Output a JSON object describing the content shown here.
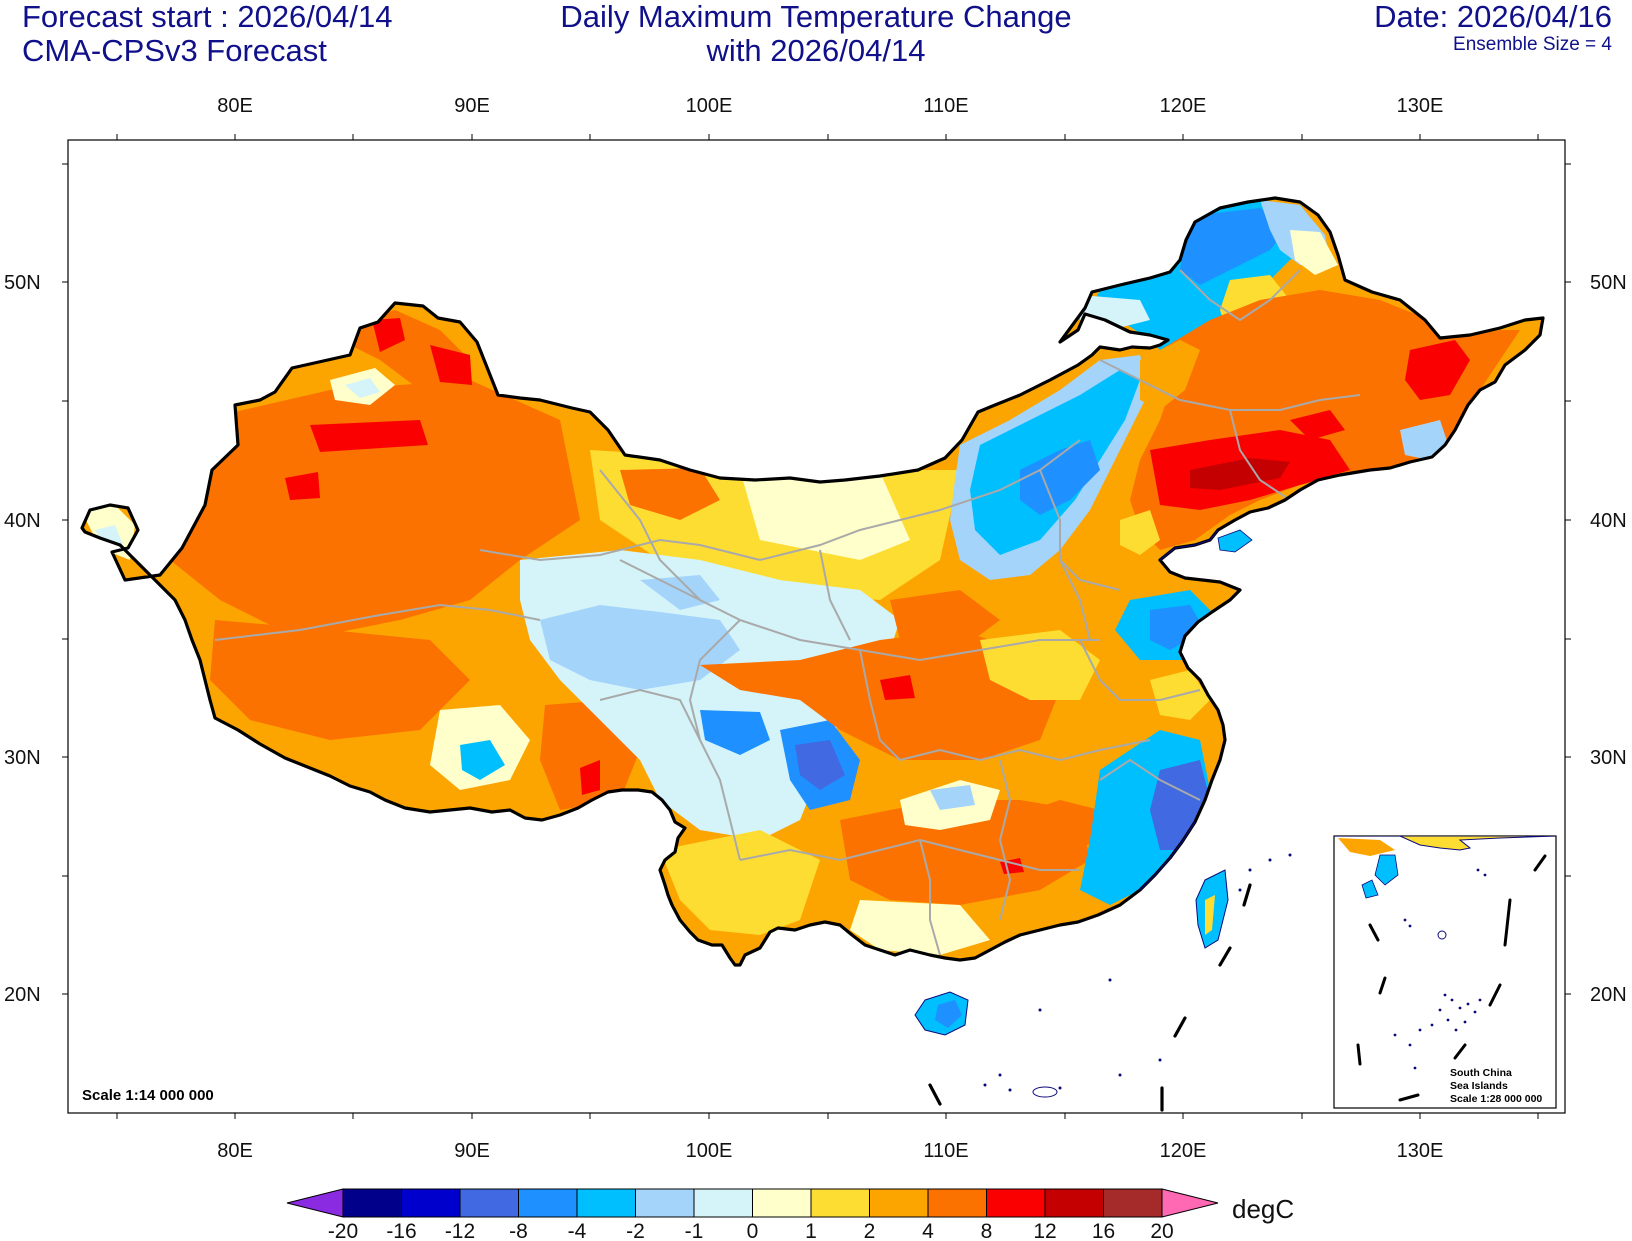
{
  "header": {
    "forecast_start": "Forecast start : 2026/04/14",
    "model": "CMA-CPSv3 Forecast",
    "title_line1": "Daily Maximum Temperature Change",
    "title_line2": "with 2026/04/14",
    "date": "Date: 2026/04/16",
    "ensemble": "Ensemble Size = 4"
  },
  "axes": {
    "lon_labels": [
      "80E",
      "90E",
      "100E",
      "110E",
      "120E",
      "130E"
    ],
    "lat_labels": [
      "50N",
      "40N",
      "30N",
      "20N"
    ]
  },
  "map": {
    "scale_label": "Scale 1:14 000 000",
    "inset": {
      "line1": "South China",
      "line2": "Sea Islands",
      "line3": "Scale 1:28 000 000"
    }
  },
  "colorbar": {
    "unit": "degC",
    "levels": [
      "-20",
      "-16",
      "-12",
      "-8",
      "-4",
      "-2",
      "-1",
      "0",
      "1",
      "2",
      "4",
      "8",
      "12",
      "16",
      "20"
    ],
    "colors": [
      "#8a2be2",
      "#00008b",
      "#0000cd",
      "#4169e1",
      "#1e90ff",
      "#00bfff",
      "#a4d4fa",
      "#d4f4fa",
      "#ffffcc",
      "#fedd33",
      "#fca500",
      "#fb7200",
      "#fb0000",
      "#c40000",
      "#a52a2a",
      "#ff69b4"
    ]
  }
}
